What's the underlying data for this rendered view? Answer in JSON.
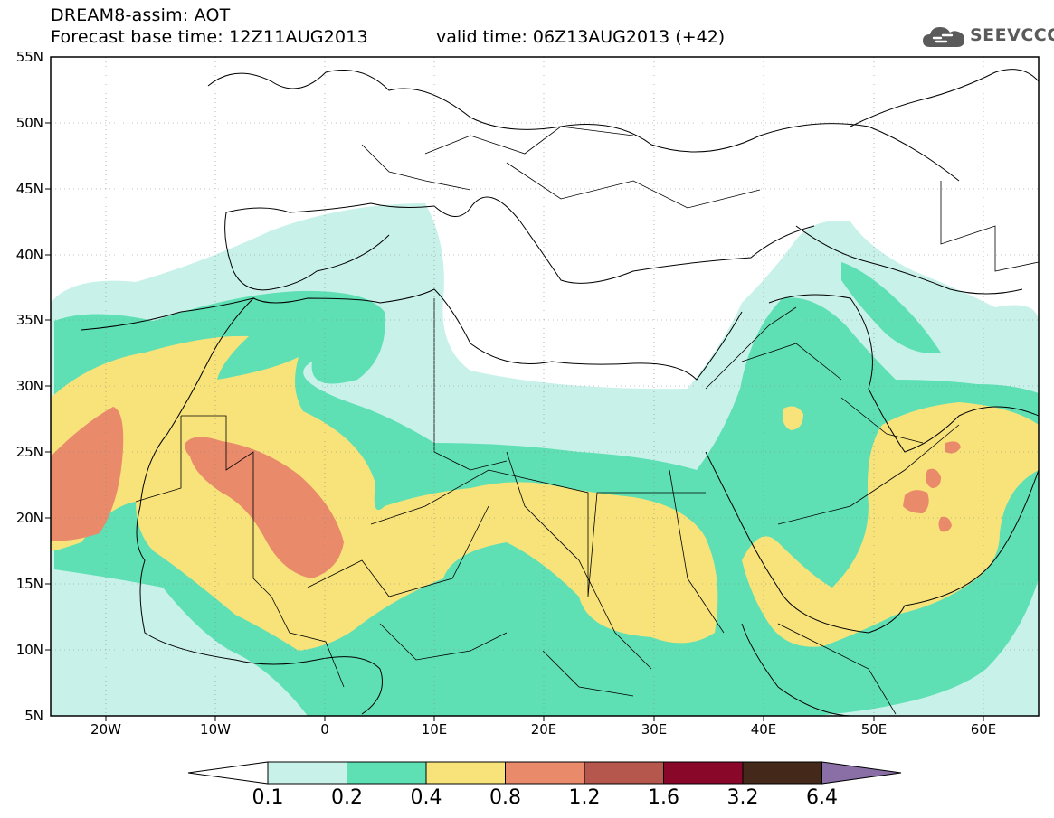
{
  "header": {
    "title": "DREAM8-assim: AOT",
    "base_time": "Forecast base time: 12Z11AUG2013",
    "valid_time": "valid time: 06Z13AUG2013 (+42)"
  },
  "logo": {
    "text": "SEEVCCC",
    "icon": "cloud-icon"
  },
  "map": {
    "lat_labels": [
      "55N",
      "50N",
      "45N",
      "40N",
      "35N",
      "30N",
      "25N",
      "20N",
      "15N",
      "10N",
      "5N"
    ],
    "lon_labels": [
      "20W",
      "10W",
      "0",
      "10E",
      "20E",
      "30E",
      "40E",
      "50E",
      "60E"
    ],
    "lon_range": [
      -25,
      65
    ],
    "lat_range": [
      5,
      55
    ]
  },
  "colorbar": {
    "colors": [
      "#ffffff",
      "#c8f2e9",
      "#5ee0b4",
      "#f8e37a",
      "#e98a6b",
      "#b5574c",
      "#89082a",
      "#44291b",
      "#8a6fa6"
    ],
    "labels": [
      "0.1",
      "0.2",
      "0.4",
      "0.8",
      "1.2",
      "1.6",
      "3.2",
      "6.4"
    ]
  }
}
